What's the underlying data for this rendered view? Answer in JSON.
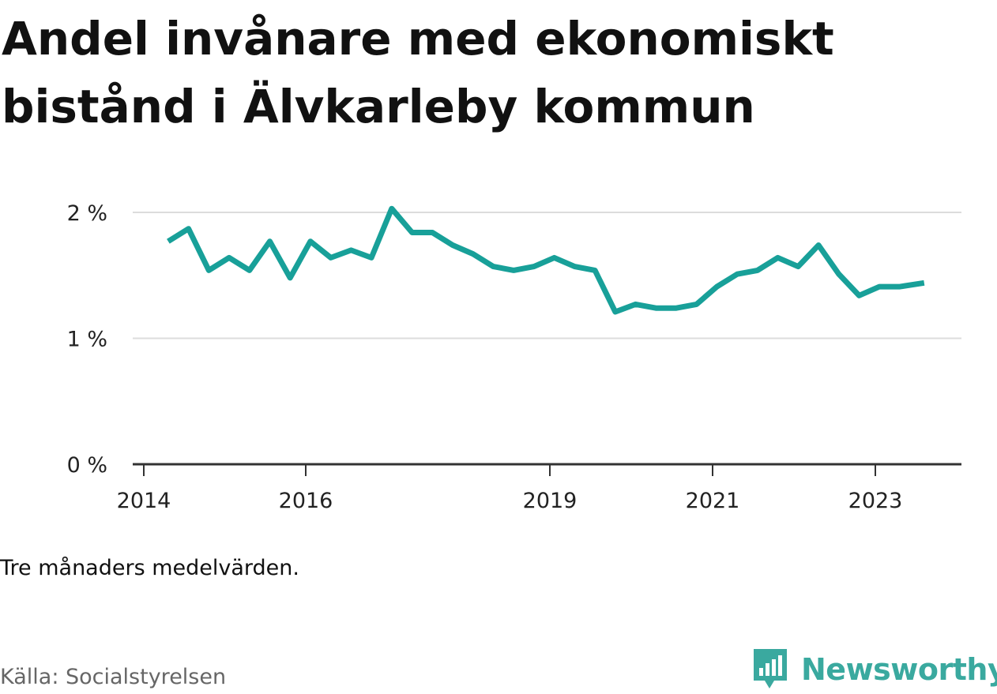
{
  "title": "Andel invånare med ekonomiskt bistånd i Älvkarleby kommun",
  "note": "Tre månaders medelvärden.",
  "source": "Källa: Socialstyrelsen",
  "brand": {
    "name": "Newsworthy",
    "icon": "newsworthy-logo-icon",
    "color": "#3aa99f"
  },
  "chart_data": {
    "type": "line",
    "title": "Andel invånare med ekonomiskt bistånd i Älvkarleby kommun",
    "xlabel": "",
    "ylabel": "",
    "ylim": [
      0,
      2
    ],
    "yticks": [
      {
        "value": 0,
        "label": "0 %"
      },
      {
        "value": 1,
        "label": "1 %"
      },
      {
        "value": 2,
        "label": "2 %"
      }
    ],
    "xlim": [
      2014.0,
      2024.3
    ],
    "xticks": [
      {
        "value": 2014.0,
        "label": "2014"
      },
      {
        "value": 2016.0,
        "label": "2016"
      },
      {
        "value": 2019.0,
        "label": "2019"
      },
      {
        "value": 2021.0,
        "label": "2021"
      },
      {
        "value": 2023.0,
        "label": "2023"
      }
    ],
    "grid": true,
    "color": "#18a099",
    "series": [
      {
        "x": [
          2014.3,
          2014.55,
          2014.8,
          2015.05,
          2015.3,
          2015.55,
          2015.8,
          2016.05,
          2016.3,
          2016.55,
          2016.8,
          2017.05,
          2017.3,
          2017.55,
          2017.8,
          2018.05,
          2018.3,
          2018.55,
          2018.8,
          2019.05,
          2019.3,
          2019.55,
          2019.8,
          2020.05,
          2020.3,
          2020.55,
          2020.8,
          2021.05,
          2021.3,
          2021.55,
          2021.8,
          2022.05,
          2022.3,
          2022.55,
          2022.8,
          2023.05,
          2023.3,
          2023.6
        ],
        "values": [
          1.77,
          1.87,
          1.54,
          1.64,
          1.54,
          1.77,
          1.48,
          1.77,
          1.64,
          1.7,
          1.64,
          2.03,
          1.84,
          1.84,
          1.74,
          1.67,
          1.57,
          1.54,
          1.57,
          1.64,
          1.57,
          1.54,
          1.21,
          1.27,
          1.24,
          1.24,
          1.27,
          1.41,
          1.51,
          1.54,
          1.64,
          1.57,
          1.74,
          1.51,
          1.34,
          1.41,
          1.41,
          1.44
        ]
      }
    ]
  }
}
